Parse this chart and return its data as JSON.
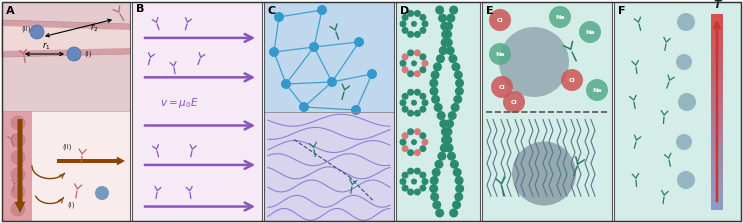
{
  "panels": [
    "A",
    "B",
    "C",
    "D",
    "E",
    "F"
  ],
  "bg_A_top": "#d8e8f0",
  "bg_A_vessel": "#e8c8c8",
  "bg_A_bottom_left": "#e8b8b8",
  "bg_A_bottom_right": "#f5e0e0",
  "bg_B": "#f5eaf5",
  "bg_C_top": "#c8dff0",
  "bg_C_bottom": "#ddd8ee",
  "bg_D": "#dff0ec",
  "bg_E": "#dff0ec",
  "bg_F": "#dff0ec",
  "color_purple_ab": "#8855bb",
  "color_pink_ab": "#bb6677",
  "color_teal_ab": "#2a7a6a",
  "color_node": "#3399cc",
  "color_ion_cl": "#cc5555",
  "color_ion_na": "#55aa8a",
  "color_blob_gray": "#8899aa",
  "color_blob_light": "#aabbcc",
  "color_brown_arrow": "#884400",
  "color_teal_dot": "#2a8a70",
  "color_pink_dot": "#dd7777",
  "border_color": "#555555"
}
